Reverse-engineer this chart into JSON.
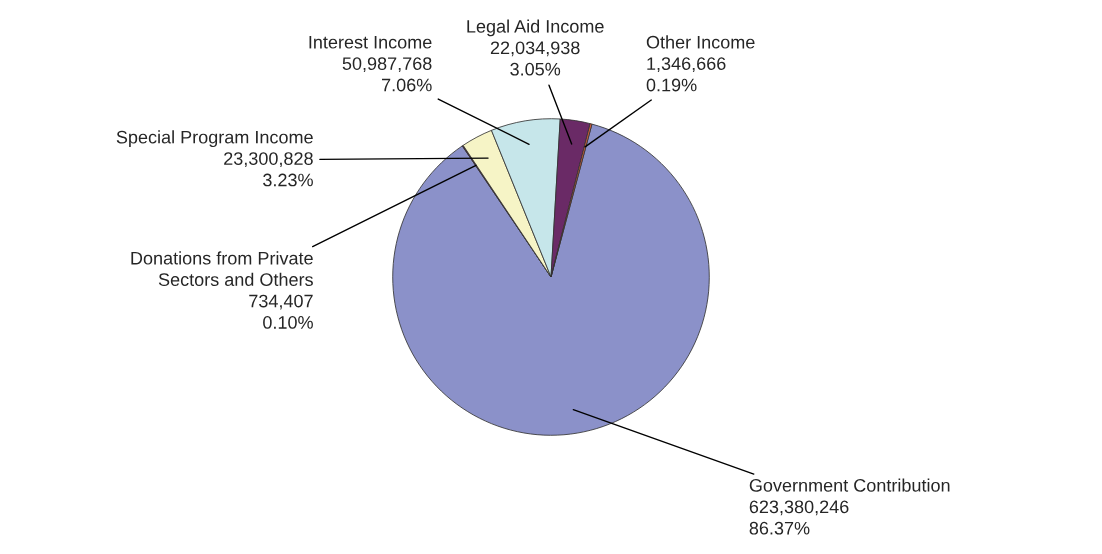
{
  "chart_data": {
    "type": "pie",
    "categories": [
      "Government Contribution",
      "Donations from Private\nSectors and Others",
      "Special Program Income",
      "Interest Income",
      "Legal Aid Income",
      "Other Income"
    ],
    "values": [
      623380246,
      734407,
      23300828,
      50987768,
      22034938,
      1346666
    ],
    "value_labels": [
      "623,380,246\n86.37%",
      "734,407\n0.10%",
      "23,300,828\n3.23%",
      "50,987,768\n7.06%",
      "22,034,938\n3.05%",
      "1,346,666\n0.19%"
    ],
    "colors": [
      "#8b91c9",
      "#5c1f45",
      "#f6f4c6",
      "#c6e6ea",
      "#6a2a66",
      "#e0603a"
    ],
    "legend": false
  }
}
